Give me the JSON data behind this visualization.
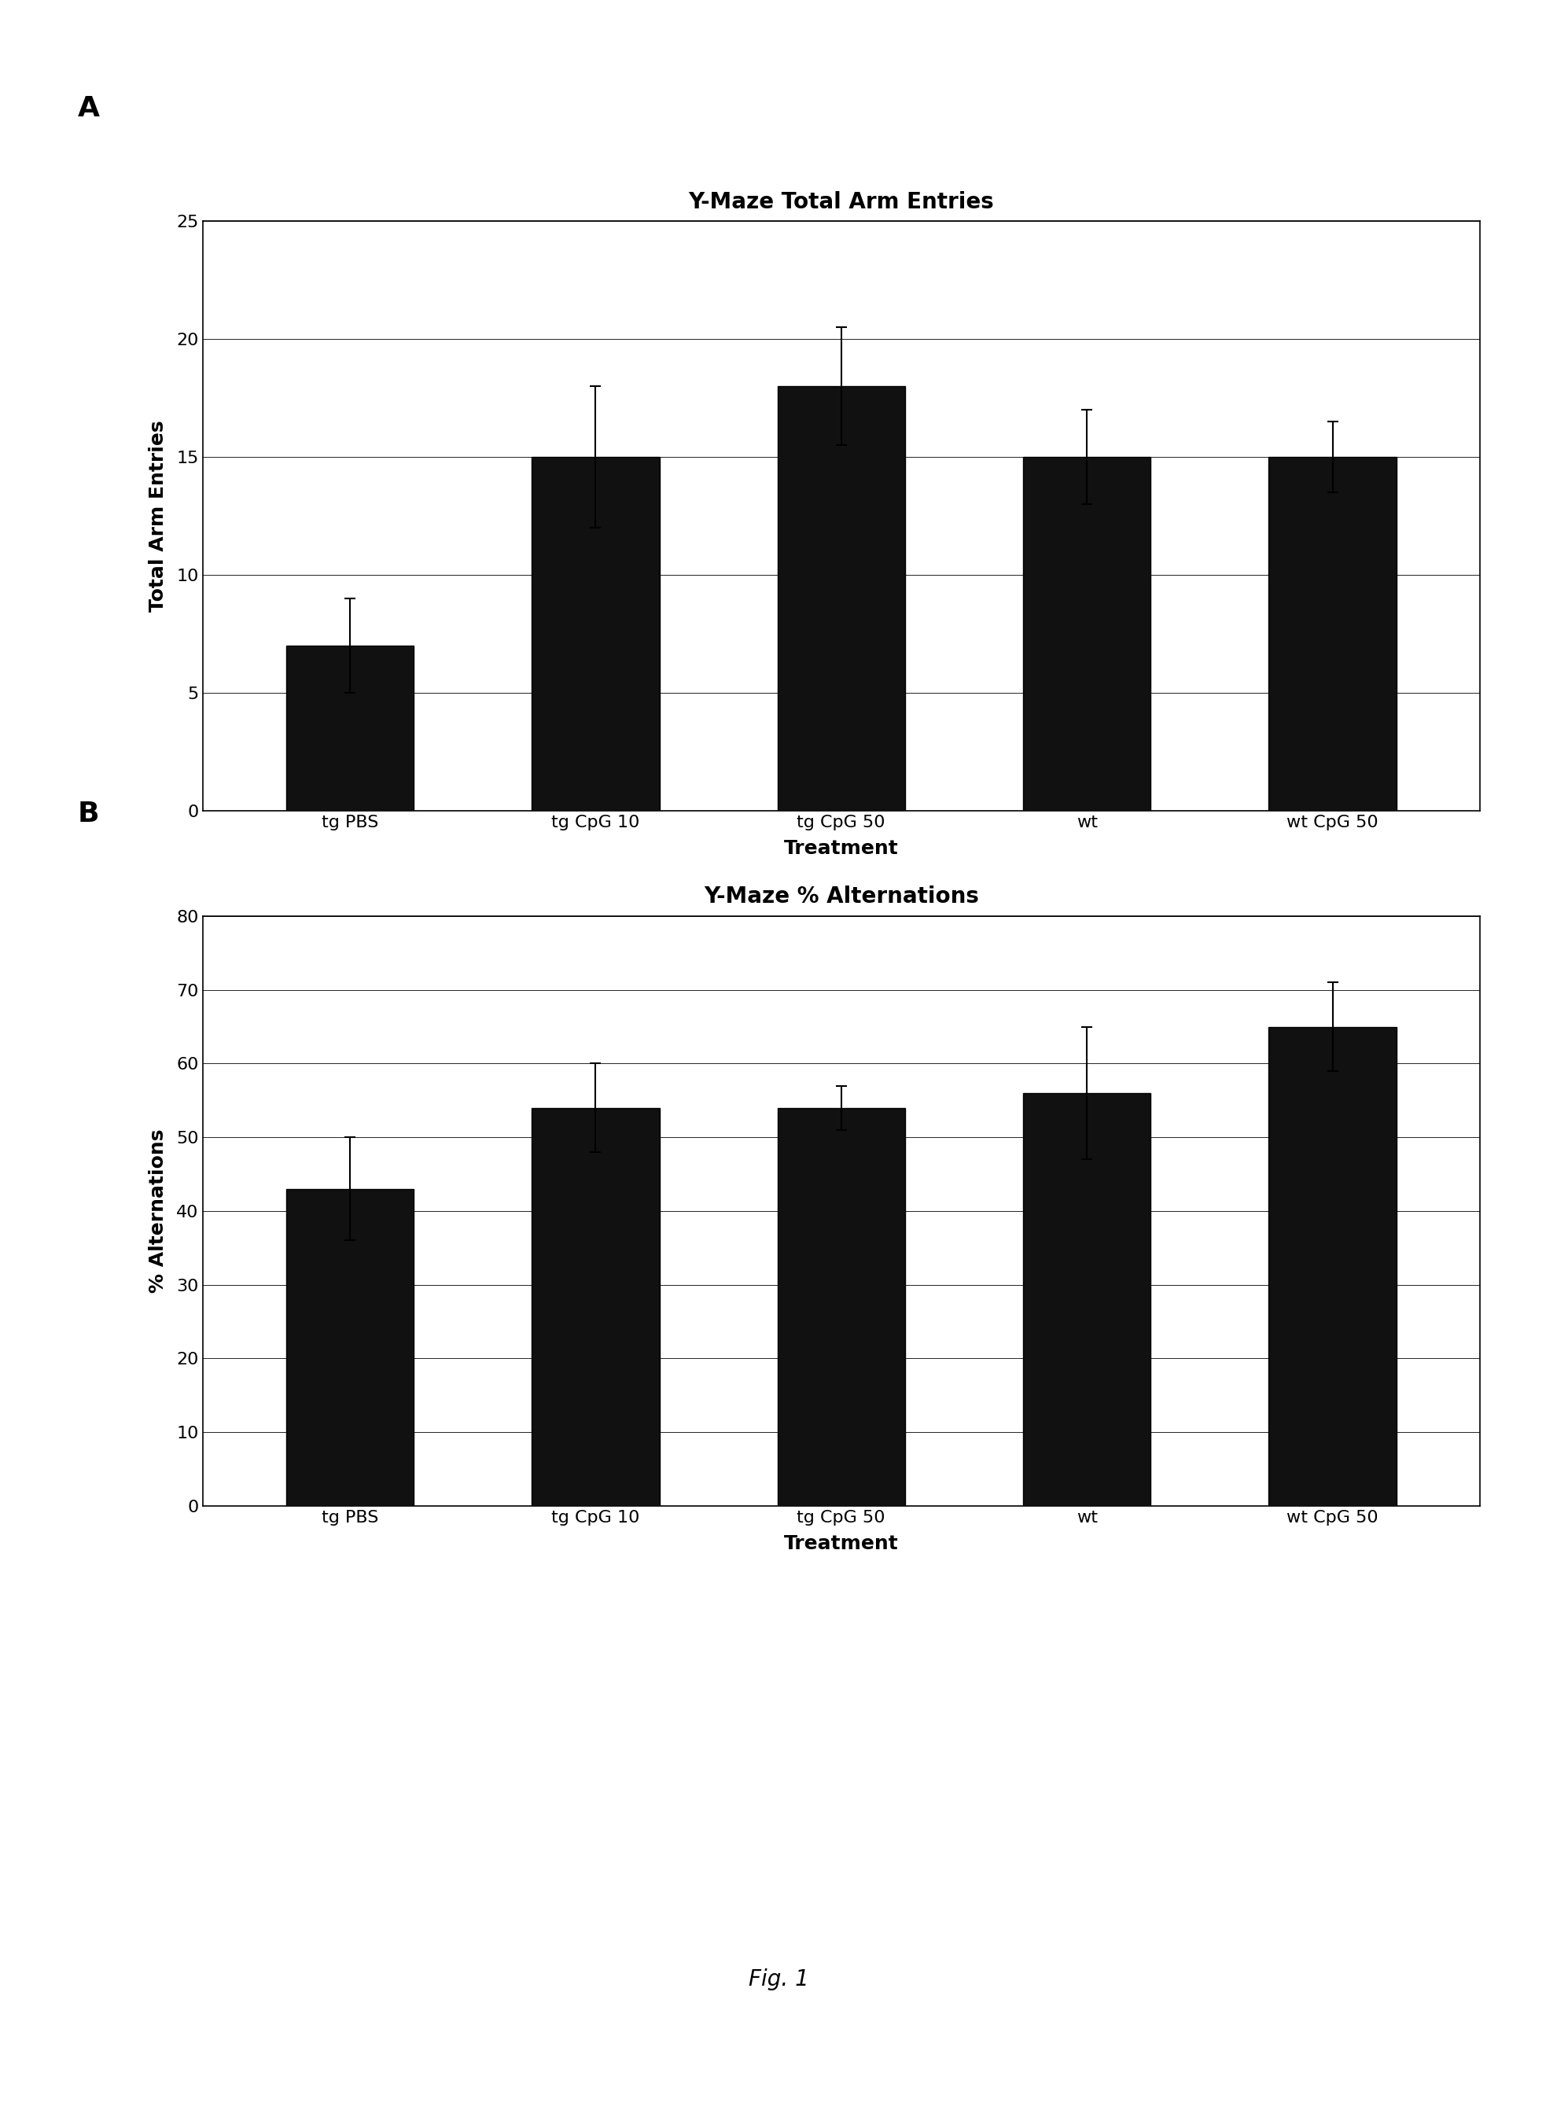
{
  "chart_A": {
    "title": "Y-Maze Total Arm Entries",
    "categories": [
      "tg PBS",
      "tg CpG 10",
      "tg CpG 50",
      "wt",
      "wt CpG 50"
    ],
    "values": [
      7,
      15,
      18,
      15,
      15
    ],
    "errors": [
      2.0,
      3.0,
      2.5,
      2.0,
      1.5
    ],
    "ylabel": "Total Arm Entries",
    "xlabel": "Treatment",
    "ylim": [
      0,
      25
    ],
    "yticks": [
      0,
      5,
      10,
      15,
      20,
      25
    ]
  },
  "chart_B": {
    "title": "Y-Maze % Alternations",
    "categories": [
      "tg PBS",
      "tg CpG 10",
      "tg CpG 50",
      "wt",
      "wt CpG 50"
    ],
    "values": [
      43,
      54,
      54,
      56,
      65
    ],
    "errors": [
      7.0,
      6.0,
      3.0,
      9.0,
      6.0
    ],
    "ylabel": "% Alternations",
    "xlabel": "Treatment",
    "ylim": [
      0,
      80
    ],
    "yticks": [
      0,
      10,
      20,
      30,
      40,
      50,
      60,
      70,
      80
    ]
  },
  "bar_color": "#111111",
  "bar_edge_color": "#000000",
  "background_color": "#ffffff",
  "label_A": "A",
  "label_B": "B",
  "fig_caption": "Fig. 1",
  "bar_width": 0.52,
  "title_fontsize": 20,
  "tick_fontsize": 16,
  "axis_label_fontsize": 18,
  "panel_label_fontsize": 26,
  "caption_fontsize": 20
}
